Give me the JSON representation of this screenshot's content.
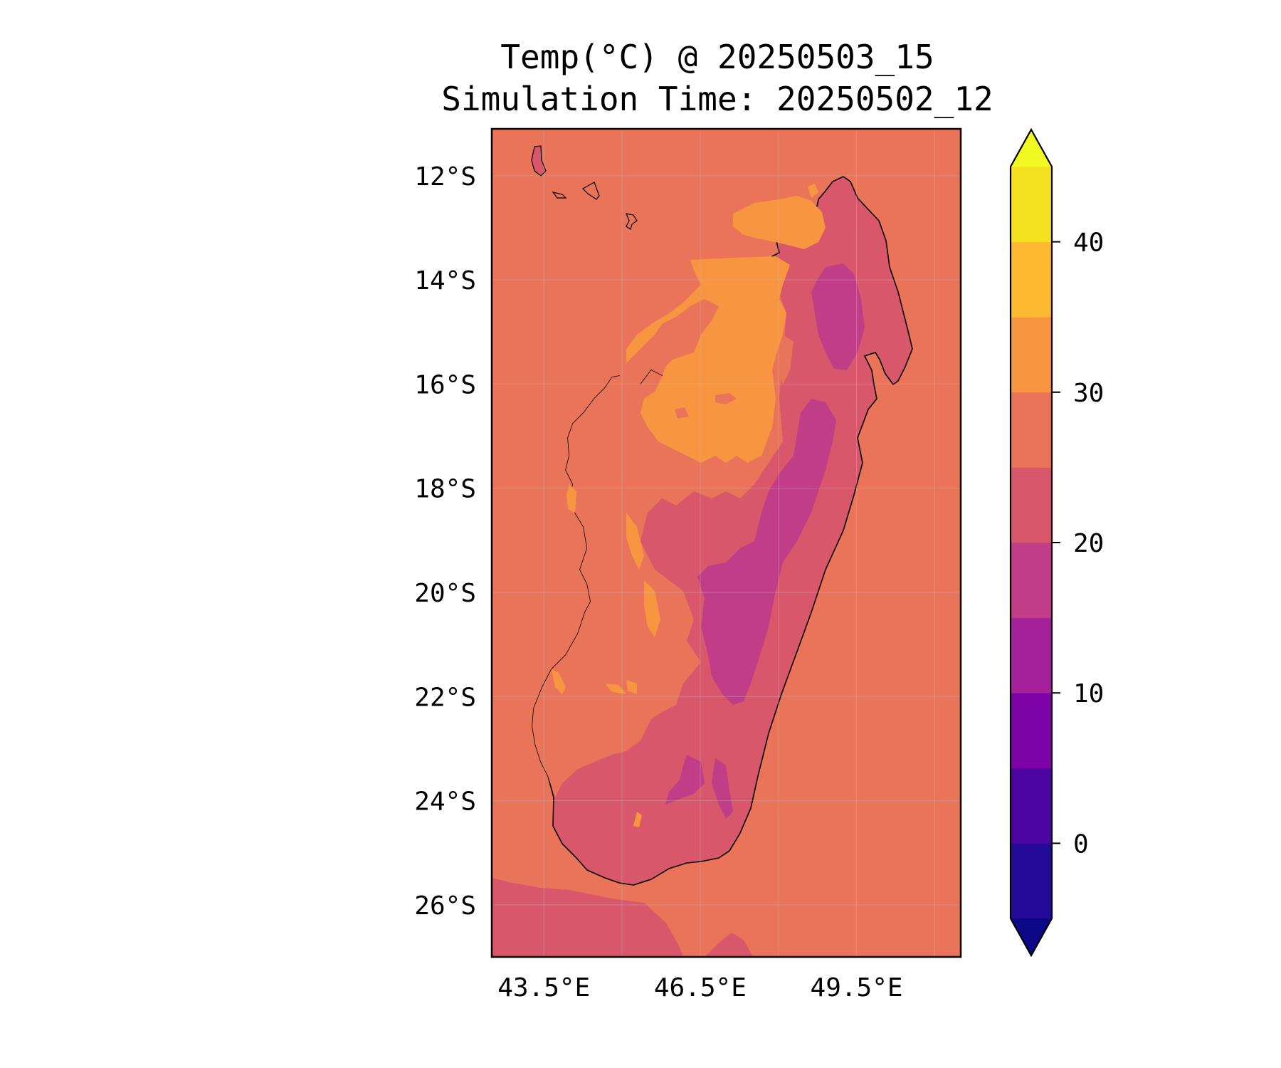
{
  "title": {
    "line1": "Temp(°C) @ 20250503_15",
    "line2": "Simulation Time: 20250502_12"
  },
  "map": {
    "lon_range": [
      42.5,
      51.5
    ],
    "lat_range": [
      -27.0,
      -11.1
    ],
    "lon_ticks": [
      {
        "value": 43.5,
        "label": "43.5°E"
      },
      {
        "value": 46.5,
        "label": "46.5°E"
      },
      {
        "value": 49.5,
        "label": "49.5°E"
      }
    ],
    "lat_ticks": [
      {
        "value": -12,
        "label": "12°S"
      },
      {
        "value": -14,
        "label": "14°S"
      },
      {
        "value": -16,
        "label": "16°S"
      },
      {
        "value": -18,
        "label": "18°S"
      },
      {
        "value": -20,
        "label": "20°S"
      },
      {
        "value": -22,
        "label": "22°S"
      },
      {
        "value": -24,
        "label": "24°S"
      },
      {
        "value": -26,
        "label": "26°S"
      }
    ],
    "gridlines": true
  },
  "colorbar": {
    "levels": [
      -5,
      0,
      5,
      10,
      15,
      20,
      25,
      30,
      35,
      40,
      45
    ],
    "colors": [
      "#240a99",
      "#4b03a1",
      "#7d03a8",
      "#a42199",
      "#c13d88",
      "#d8576b",
      "#ea7459",
      "#f89540",
      "#fdb92f",
      "#f4e220"
    ],
    "under_color": "#0d0887",
    "over_color": "#f0f921",
    "extend": "both",
    "tick_labels": [
      {
        "value": 0,
        "label": "0"
      },
      {
        "value": 10,
        "label": "10"
      },
      {
        "value": 20,
        "label": "20"
      },
      {
        "value": 30,
        "label": "30"
      },
      {
        "value": 40,
        "label": "40"
      }
    ]
  }
}
